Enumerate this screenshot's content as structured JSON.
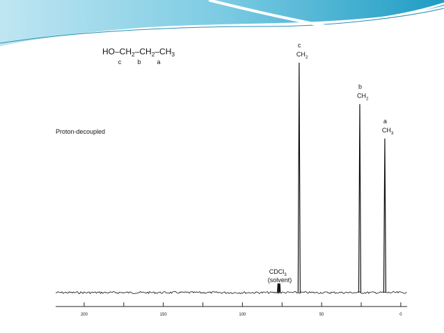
{
  "chart_data": {
    "type": "spectrum",
    "formula": {
      "parts": [
        "HO–CH",
        "2",
        "–CH",
        "2",
        "–CH",
        "3"
      ],
      "letters": [
        "c",
        "b",
        "a"
      ]
    },
    "annotation": "Proton-decoupled",
    "peaks": [
      {
        "letter": "c",
        "group": "CH",
        "sub": "2",
        "x": 64.2,
        "value": 100
      },
      {
        "letter": "b",
        "group": "CH",
        "sub": "2",
        "x": 25.9,
        "value": 82
      },
      {
        "letter": "a",
        "group": "CH",
        "sub": "3",
        "x": 10.1,
        "value": 67
      }
    ],
    "solvent": {
      "label": "CDCl",
      "sub": "3",
      "note": "(solvent)",
      "x": [
        77.6,
        77.0,
        76.4
      ],
      "values": [
        4,
        4,
        4
      ]
    },
    "color": "#111111",
    "xlim": [
      218,
      -4
    ],
    "xticks": [
      200,
      150,
      100,
      50,
      0
    ],
    "xminorticks": [
      175,
      125,
      75,
      25
    ],
    "ylim": [
      0,
      100
    ]
  }
}
